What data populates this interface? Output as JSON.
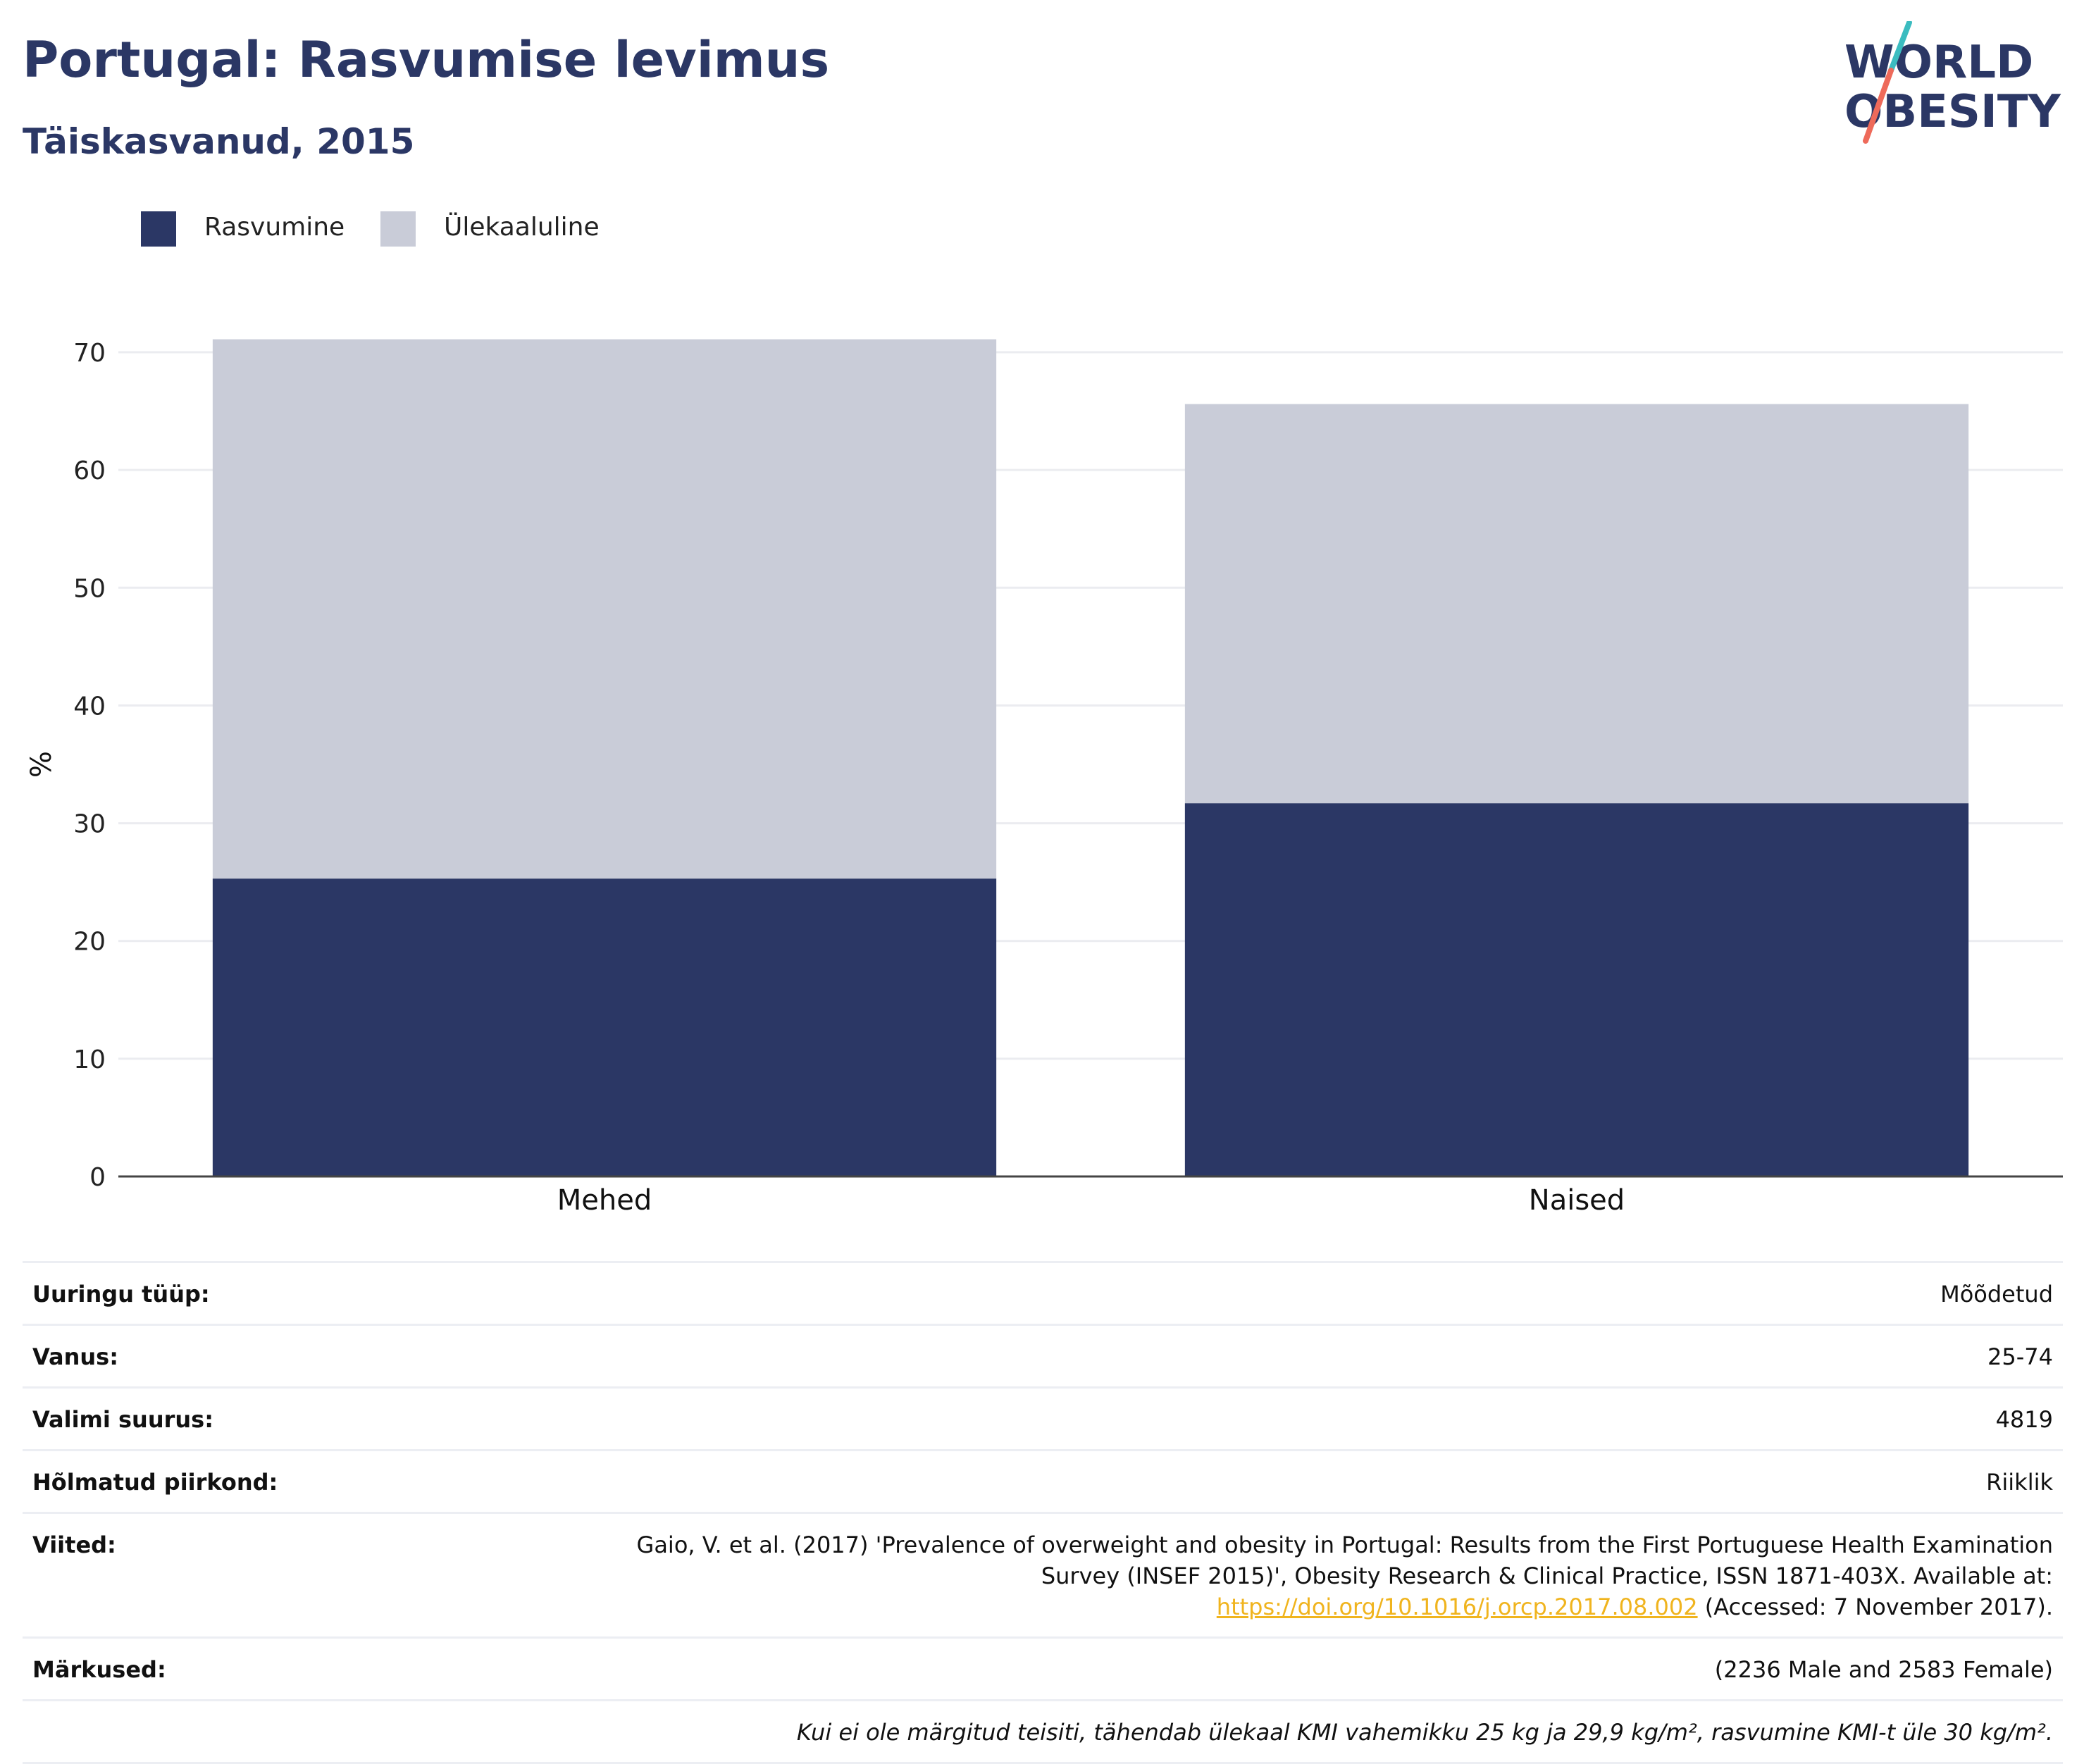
{
  "header": {
    "title": "Portugal: Rasvumise levimus",
    "subtitle": "Täiskasvanud, 2015",
    "logo": {
      "line1": "WORLD",
      "line2": "OBESITY"
    }
  },
  "legend": {
    "items": [
      {
        "label": "Rasvumine",
        "color": "#2b3765"
      },
      {
        "label": "Ülekaaluline",
        "color": "#c9ccd8"
      }
    ]
  },
  "chart_data": {
    "type": "bar",
    "stacked": true,
    "categories": [
      "Mehed",
      "Naised"
    ],
    "series": [
      {
        "name": "Rasvumine",
        "color": "#2b3765",
        "values": [
          25.3,
          31.7
        ]
      },
      {
        "name": "Ülekaaluline",
        "color": "#c9ccd8",
        "values": [
          45.8,
          33.9
        ]
      }
    ],
    "ylabel": "%",
    "ylim": [
      0,
      70
    ],
    "yticks": [
      0,
      10,
      20,
      30,
      40,
      50,
      60,
      70
    ],
    "grid": true,
    "legend_position": "top-left"
  },
  "info": {
    "rows": [
      {
        "label": "Uuringu tüüp:",
        "value": "Mõõdetud"
      },
      {
        "label": "Vanus:",
        "value": "25-74"
      },
      {
        "label": "Valimi suurus:",
        "value": "4819"
      },
      {
        "label": "Hõlmatud piirkond:",
        "value": "Riiklik"
      }
    ],
    "reference": {
      "label": "Viited:",
      "text_before": "Gaio, V. et al. (2017) 'Prevalence of overweight and obesity in Portugal: Results from the First Portuguese Health Examination Survey (INSEF 2015)', Obesity Research & Clinical Practice, ISSN 1871-403X. Available at: ",
      "link": "https://doi.org/10.1016/j.orcp.2017.08.002",
      "text_after": " (Accessed: 7 November 2017)."
    },
    "notes": {
      "label": "Märkused:",
      "value": "(2236 Male and 2583 Female)"
    },
    "footnote": "Kui ei ole märgitud teisiti, tähendab ülekaal KMI vahemikku 25 kg ja 29,9 kg/m², rasvumine KMI-t üle 30 kg/m²."
  }
}
